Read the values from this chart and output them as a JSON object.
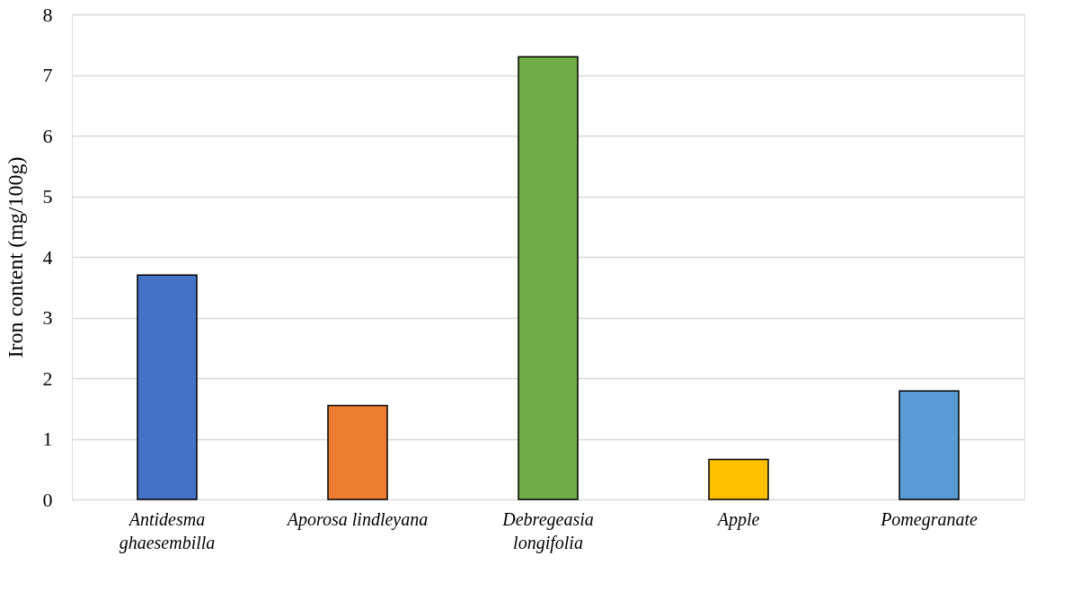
{
  "chart_data": {
    "type": "bar",
    "ylabel": "Iron content (mg/100g)",
    "categories": [
      "Antidesma ghaesembilla",
      "Aporosa lindleyana",
      "Debregeasia longifolia",
      "Apple",
      "Pomegranate"
    ],
    "values": [
      3.7,
      1.55,
      7.3,
      0.66,
      1.79
    ],
    "colors": [
      "#4472c4",
      "#ed7d31",
      "#70ad47",
      "#ffc000",
      "#5b9bd5"
    ],
    "ylim": [
      0,
      8
    ],
    "yticks": [
      0,
      1,
      2,
      3,
      4,
      5,
      6,
      7,
      8
    ],
    "grid": "y"
  }
}
